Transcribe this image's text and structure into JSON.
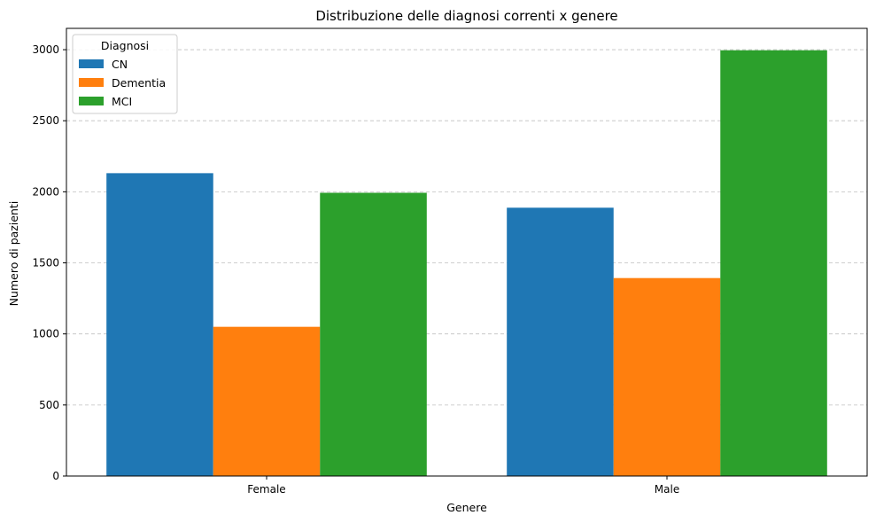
{
  "chart_data": {
    "type": "bar",
    "title": "Distribuzione delle diagnosi correnti x genere",
    "xlabel": "Genere",
    "ylabel": "Numero di pazienti",
    "categories": [
      "Female",
      "Male"
    ],
    "series": [
      {
        "name": "CN",
        "values": [
          2131,
          1888
        ],
        "color": "#1f77b4"
      },
      {
        "name": "Dementia",
        "values": [
          1050,
          1393
        ],
        "color": "#ff7f0e"
      },
      {
        "name": "MCI",
        "values": [
          1993,
          2996
        ],
        "color": "#2ca02c"
      }
    ],
    "ylim": [
      0,
      3150
    ],
    "yticks": [
      0,
      500,
      1000,
      1500,
      2000,
      2500,
      3000
    ],
    "grid": "y-dashed",
    "legend": {
      "title": "Diagnosi",
      "position": "top-left"
    }
  }
}
